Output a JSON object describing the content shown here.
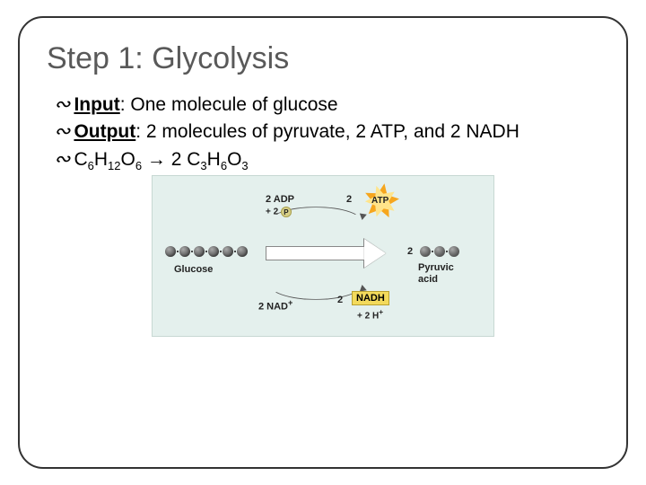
{
  "title": "Step 1: Glycolysis",
  "bullets": {
    "input": {
      "label": "Input",
      "text": ": One molecule of glucose"
    },
    "output": {
      "label": "Output",
      "text": ": 2 molecules of pyruvate, 2 ATP, and 2 NADH"
    },
    "formula": {
      "c1": "C",
      "s1": "6",
      "h1": "H",
      "s2": "12",
      "o1": "O",
      "s3": "6",
      "arrow": " → 2 ",
      "c2": "C",
      "s4": "3",
      "h2": "H",
      "s5": "6",
      "o2": "O",
      "s6": "3"
    }
  },
  "diagram": {
    "type": "infographic",
    "background_color": "#e4f0ed",
    "glucose": {
      "label": "Glucose",
      "carbon_count": 6,
      "dot_color": "#666"
    },
    "pyruvate": {
      "qty": "2",
      "label_line1": "Pyruvic",
      "label_line2": "acid",
      "carbon_count": 3
    },
    "adp": {
      "text": "2 ADP"
    },
    "p_inorganic": {
      "prefix": "+ 2 ",
      "symbol": "P"
    },
    "atp": {
      "qty": "2",
      "label": "ATP",
      "star_fill": "#f6a61e",
      "star_inner": "#ffe48a"
    },
    "nad": {
      "text": "2 NAD",
      "sup": "+"
    },
    "nadh": {
      "qty": "2",
      "label": "NADH",
      "box_fill": "#f3da5c"
    },
    "h_plus": {
      "text": "+ 2 H",
      "sup": "+"
    },
    "arrow_color": "#ffffff"
  }
}
